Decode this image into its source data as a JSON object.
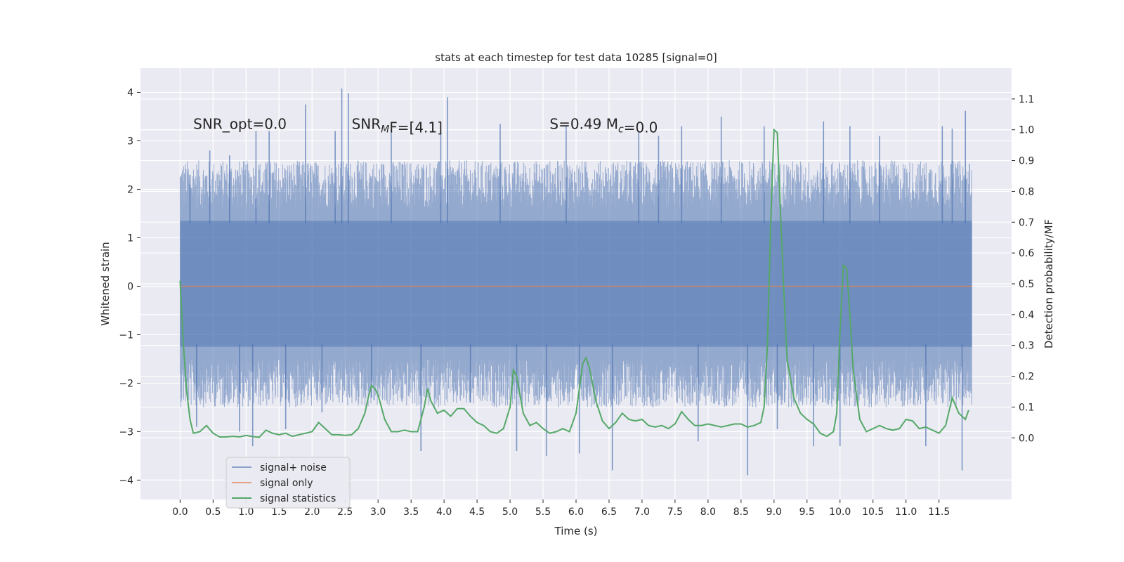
{
  "chart_data": {
    "type": "line",
    "title": "stats at each timestep for test data 10285 [signal=0]",
    "xlabel": "Time (s)",
    "ylabel": "Whitened strain",
    "y2label": "Detection probability/MF",
    "xlim": [
      -0.6,
      12.6
    ],
    "ylim": [
      -4.4,
      4.5
    ],
    "y2lim": [
      -0.2,
      1.2
    ],
    "x_ticks": [
      0.0,
      0.5,
      1.0,
      1.5,
      2.0,
      2.5,
      3.0,
      3.5,
      4.0,
      4.5,
      5.0,
      5.5,
      6.0,
      6.5,
      7.0,
      7.5,
      8.0,
      8.5,
      9.0,
      9.5,
      10.0,
      10.5,
      11.0,
      11.5
    ],
    "x_tick_labels": [
      "0.0",
      "0.5",
      "1.0",
      "1.5",
      "2.0",
      "2.5",
      "3.0",
      "3.5",
      "4.0",
      "4.5",
      "5.0",
      "5.5",
      "6.0",
      "6.5",
      "7.0",
      "7.5",
      "8.0",
      "8.5",
      "9.0",
      "9.5",
      "10.0",
      "10.5",
      "11.0",
      "11.5"
    ],
    "y_ticks": [
      -4,
      -3,
      -2,
      -1,
      0,
      1,
      2,
      3,
      4
    ],
    "y_tick_labels": [
      "−4",
      "−3",
      "−2",
      "−1",
      "0",
      "1",
      "2",
      "3",
      "4"
    ],
    "y2_ticks": [
      0.0,
      0.1,
      0.2,
      0.3,
      0.4,
      0.5,
      0.6,
      0.7,
      0.8,
      0.9,
      1.0,
      1.1
    ],
    "y2_tick_labels": [
      "0.0",
      "0.1",
      "0.2",
      "0.3",
      "0.4",
      "0.5",
      "0.6",
      "0.7",
      "0.8",
      "0.9",
      "1.0",
      "1.1"
    ],
    "grid": true,
    "legend_position": "lower-left",
    "colors": {
      "background": "#eaeaf2",
      "grid": "#ffffff",
      "noise": "#4c72b0",
      "signal_only": "#dd8452",
      "statistics": "#55a868"
    },
    "noise": {
      "x_range": [
        0.0,
        12.0
      ],
      "band": [
        -1.25,
        1.35
      ],
      "peaks": [
        {
          "x": 0.15,
          "y": 2.1
        },
        {
          "x": 0.25,
          "y": -2.9
        },
        {
          "x": 0.45,
          "y": 2.8
        },
        {
          "x": 0.75,
          "y": 2.7
        },
        {
          "x": 0.9,
          "y": -3.0
        },
        {
          "x": 1.1,
          "y": -3.3
        },
        {
          "x": 1.15,
          "y": 3.2
        },
        {
          "x": 1.35,
          "y": 3.2
        },
        {
          "x": 1.6,
          "y": -2.95
        },
        {
          "x": 1.9,
          "y": 3.75
        },
        {
          "x": 2.15,
          "y": -2.6
        },
        {
          "x": 2.35,
          "y": 3.2
        },
        {
          "x": 2.45,
          "y": 4.08
        },
        {
          "x": 2.55,
          "y": 3.98
        },
        {
          "x": 2.9,
          "y": -2.3
        },
        {
          "x": 3.2,
          "y": 3.25
        },
        {
          "x": 3.65,
          "y": -3.4
        },
        {
          "x": 3.95,
          "y": 3.2
        },
        {
          "x": 4.05,
          "y": 3.9
        },
        {
          "x": 4.4,
          "y": -2.4
        },
        {
          "x": 4.85,
          "y": 3.35
        },
        {
          "x": 5.1,
          "y": -3.4
        },
        {
          "x": 5.55,
          "y": -3.5
        },
        {
          "x": 5.85,
          "y": 3.3
        },
        {
          "x": 6.05,
          "y": -3.45
        },
        {
          "x": 6.55,
          "y": -3.8
        },
        {
          "x": 6.95,
          "y": 3.2
        },
        {
          "x": 7.25,
          "y": 3.1
        },
        {
          "x": 7.6,
          "y": 3.3
        },
        {
          "x": 7.85,
          "y": -3.2
        },
        {
          "x": 8.2,
          "y": 3.5
        },
        {
          "x": 8.6,
          "y": -3.9
        },
        {
          "x": 8.85,
          "y": 3.3
        },
        {
          "x": 9.05,
          "y": -2.95
        },
        {
          "x": 9.6,
          "y": -3.3
        },
        {
          "x": 9.75,
          "y": 3.4
        },
        {
          "x": 10.0,
          "y": -3.3
        },
        {
          "x": 10.15,
          "y": 3.3
        },
        {
          "x": 10.6,
          "y": 3.1
        },
        {
          "x": 11.3,
          "y": -3.3
        },
        {
          "x": 11.55,
          "y": 3.3
        },
        {
          "x": 11.7,
          "y": 3.25
        },
        {
          "x": 11.85,
          "y": -3.8
        },
        {
          "x": 11.9,
          "y": 3.62
        }
      ]
    },
    "signal_only": {
      "x": [
        0.0,
        12.0
      ],
      "y": [
        0.0,
        0.0
      ]
    },
    "statistics": {
      "x": [
        0.0,
        0.05,
        0.1,
        0.15,
        0.2,
        0.3,
        0.4,
        0.5,
        0.6,
        0.7,
        0.8,
        0.9,
        1.0,
        1.1,
        1.2,
        1.3,
        1.4,
        1.5,
        1.6,
        1.7,
        1.8,
        1.9,
        2.0,
        2.1,
        2.2,
        2.3,
        2.4,
        2.5,
        2.6,
        2.7,
        2.8,
        2.85,
        2.9,
        2.95,
        3.0,
        3.1,
        3.2,
        3.3,
        3.4,
        3.5,
        3.6,
        3.7,
        3.75,
        3.8,
        3.9,
        4.0,
        4.1,
        4.2,
        4.3,
        4.4,
        4.5,
        4.6,
        4.7,
        4.8,
        4.9,
        5.0,
        5.05,
        5.1,
        5.15,
        5.2,
        5.3,
        5.4,
        5.5,
        5.6,
        5.7,
        5.8,
        5.9,
        6.0,
        6.1,
        6.15,
        6.2,
        6.3,
        6.4,
        6.5,
        6.6,
        6.7,
        6.8,
        6.9,
        7.0,
        7.1,
        7.2,
        7.3,
        7.4,
        7.5,
        7.6,
        7.7,
        7.8,
        7.9,
        8.0,
        8.1,
        8.2,
        8.3,
        8.4,
        8.5,
        8.6,
        8.7,
        8.8,
        8.85,
        8.9,
        8.95,
        9.0,
        9.05,
        9.1,
        9.15,
        9.2,
        9.3,
        9.4,
        9.5,
        9.6,
        9.7,
        9.8,
        9.9,
        9.95,
        10.0,
        10.05,
        10.1,
        10.15,
        10.2,
        10.3,
        10.4,
        10.5,
        10.6,
        10.7,
        10.8,
        10.9,
        11.0,
        11.1,
        11.2,
        11.3,
        11.4,
        11.5,
        11.6,
        11.7,
        11.8,
        11.9,
        11.95
      ],
      "y": [
        0.51,
        0.3,
        0.15,
        0.06,
        0.015,
        0.02,
        0.04,
        0.015,
        0.003,
        0.003,
        0.005,
        0.003,
        0.008,
        0.004,
        0.002,
        0.025,
        0.015,
        0.01,
        0.015,
        0.005,
        0.01,
        0.015,
        0.02,
        0.05,
        0.03,
        0.01,
        0.01,
        0.008,
        0.01,
        0.03,
        0.08,
        0.13,
        0.17,
        0.16,
        0.14,
        0.06,
        0.02,
        0.02,
        0.025,
        0.02,
        0.02,
        0.1,
        0.16,
        0.12,
        0.08,
        0.09,
        0.07,
        0.095,
        0.095,
        0.07,
        0.05,
        0.04,
        0.02,
        0.015,
        0.03,
        0.1,
        0.22,
        0.2,
        0.14,
        0.08,
        0.04,
        0.05,
        0.03,
        0.015,
        0.02,
        0.03,
        0.02,
        0.08,
        0.24,
        0.26,
        0.23,
        0.12,
        0.055,
        0.03,
        0.05,
        0.08,
        0.06,
        0.055,
        0.06,
        0.04,
        0.035,
        0.04,
        0.03,
        0.045,
        0.085,
        0.06,
        0.04,
        0.04,
        0.045,
        0.04,
        0.035,
        0.04,
        0.045,
        0.045,
        0.035,
        0.04,
        0.05,
        0.1,
        0.3,
        0.7,
        1.0,
        0.99,
        0.72,
        0.47,
        0.25,
        0.13,
        0.08,
        0.06,
        0.045,
        0.015,
        0.005,
        0.02,
        0.08,
        0.35,
        0.56,
        0.55,
        0.4,
        0.22,
        0.06,
        0.02,
        0.03,
        0.04,
        0.03,
        0.025,
        0.03,
        0.06,
        0.055,
        0.03,
        0.035,
        0.025,
        0.015,
        0.04,
        0.13,
        0.08,
        0.06,
        0.09
      ]
    },
    "annotations": [
      {
        "text": "SNR_opt=0.0",
        "x": 0.2,
        "y": 3.35
      },
      {
        "text": "SNR_MF=[4.1]",
        "x": 2.6,
        "y": 3.35
      },
      {
        "text": "S=0.49   M_c=0.0",
        "x": 5.6,
        "y": 3.35
      }
    ],
    "legend": [
      "signal+ noise",
      "signal only",
      "signal statistics"
    ]
  }
}
